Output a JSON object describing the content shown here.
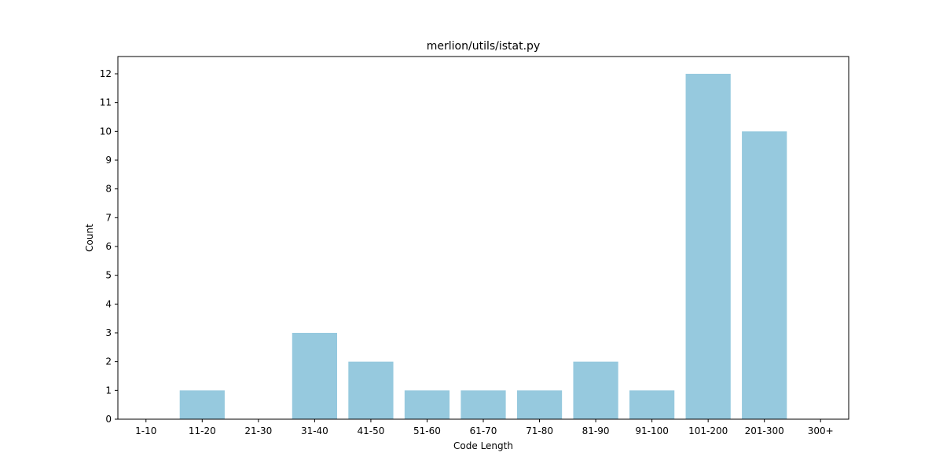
{
  "chart_data": {
    "type": "bar",
    "title": "merlion/utils/istat.py",
    "xlabel": "Code Length",
    "ylabel": "Count",
    "categories": [
      "1-10",
      "11-20",
      "21-30",
      "31-40",
      "41-50",
      "51-60",
      "61-70",
      "71-80",
      "81-90",
      "91-100",
      "101-200",
      "201-300",
      "300+"
    ],
    "values": [
      0,
      1,
      0,
      3,
      2,
      1,
      1,
      1,
      2,
      1,
      12,
      10,
      0
    ],
    "yticks": [
      0,
      1,
      2,
      3,
      4,
      5,
      6,
      7,
      8,
      9,
      10,
      11,
      12
    ],
    "ylim": [
      0,
      12.6
    ],
    "bar_color": "#96c9de",
    "grid": false,
    "legend": "none"
  }
}
